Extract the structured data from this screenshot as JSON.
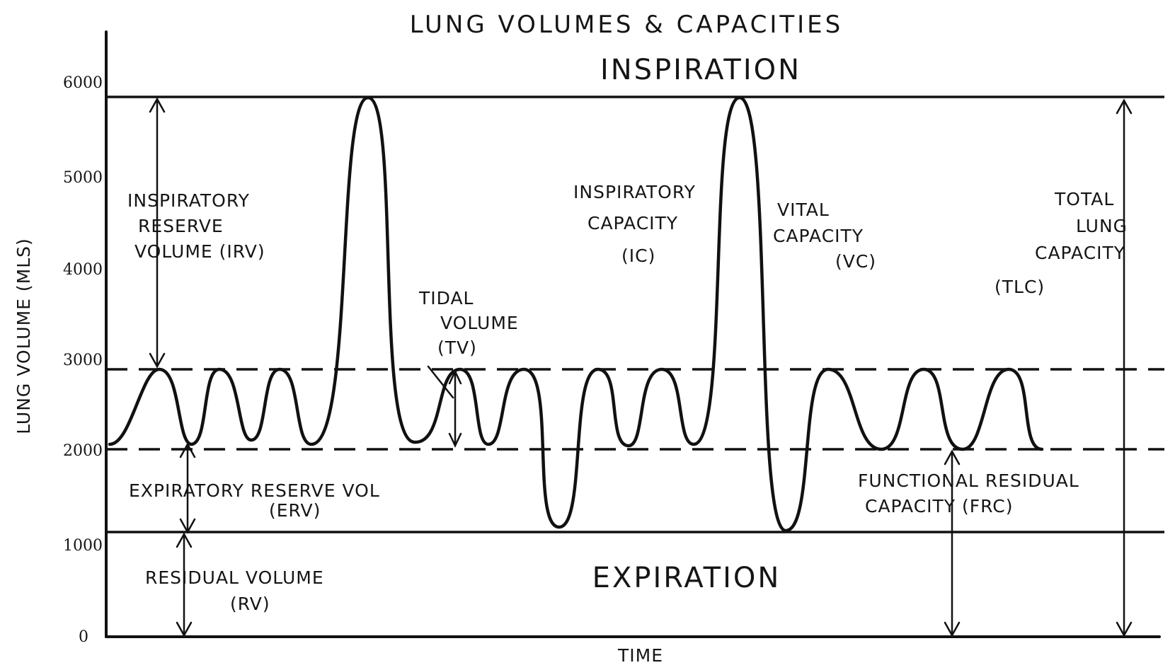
{
  "diagram": {
    "title": "LUNG VOLUMES & CAPACITIES",
    "top_region": "INSPIRATION",
    "bottom_region": "EXPIRATION",
    "y_axis_label": "LUNG VOLUME (MLS)",
    "x_axis_label": "TIME",
    "y_ticks": [
      "6000",
      "5000",
      "4000",
      "3000",
      "2000",
      "1000",
      "0"
    ],
    "reference_levels_ml": {
      "total_lung_capacity": 5900,
      "tidal_end_inspiration": 3000,
      "tidal_end_expiration": 2000,
      "residual": 1000
    },
    "labels": {
      "irv": [
        "INSPIRATORY",
        "RESERVE",
        "VOLUME (IRV)"
      ],
      "ic": [
        "INSPIRATORY",
        "CAPACITY",
        "(IC)"
      ],
      "tv": [
        "TIDAL",
        "VOLUME",
        "(TV)"
      ],
      "vc": [
        "VITAL",
        "CAPACITY",
        "(VC)"
      ],
      "tlc": [
        "TOTAL",
        "LUNG",
        "CAPACITY",
        "(TLC)"
      ],
      "erv": [
        "EXPIRATORY RESERVE VOL",
        "(ERV)"
      ],
      "frc": [
        "FUNCTIONAL RESIDUAL",
        "CAPACITY (FRC)"
      ],
      "rv": [
        "RESIDUAL VOLUME",
        "(RV)"
      ]
    }
  }
}
